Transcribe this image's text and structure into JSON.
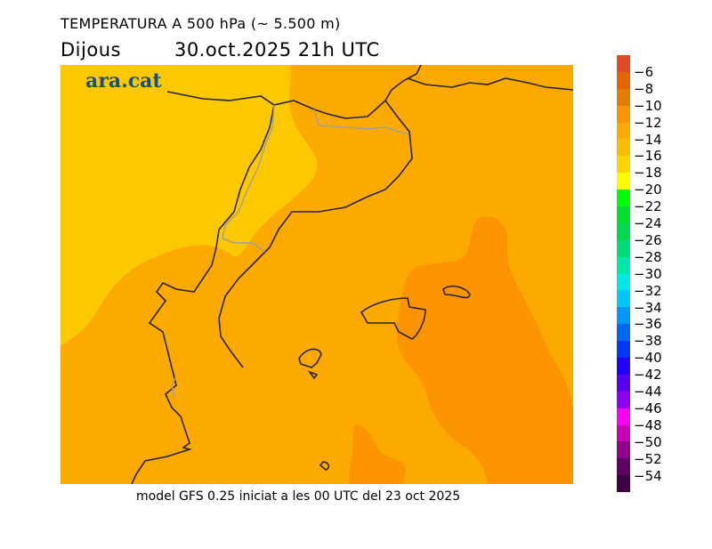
{
  "title": "TEMPERATURA A 500 hPa (~ 5.500 m)",
  "day": "Dijous",
  "datetime": "30.oct.2025 21h UTC",
  "logo": "ara.cat",
  "footer": "model GFS 0.25 iniciat a les 00 UTC del 23 oct 2025",
  "colorbar": {
    "labels": [
      "−6",
      "−8",
      "−10",
      "−12",
      "−14",
      "−16",
      "−18",
      "−20",
      "−22",
      "−24",
      "−26",
      "−28",
      "−30",
      "−32",
      "−34",
      "−36",
      "−38",
      "−40",
      "−42",
      "−44",
      "−46",
      "−48",
      "−50",
      "−52",
      "−54"
    ],
    "colors": [
      "#e04a24",
      "#e66400",
      "#e07c00",
      "#fc9400",
      "#fcaa00",
      "#fcbc00",
      "#fcd400",
      "#fcfc00",
      "#00fc00",
      "#00e030",
      "#00d850",
      "#00dc78",
      "#00e8a8",
      "#00e8e8",
      "#00c8f8",
      "#0098f8",
      "#0068f0",
      "#0038f8",
      "#2000f8",
      "#5800f0",
      "#9000f0",
      "#f800f0",
      "#c800b8",
      "#900090",
      "#600060",
      "#400048"
    ]
  },
  "field_colors": {
    "yellow": "#fcc800",
    "orange": "#fcaa00",
    "dark_orange": "#fc9400"
  }
}
